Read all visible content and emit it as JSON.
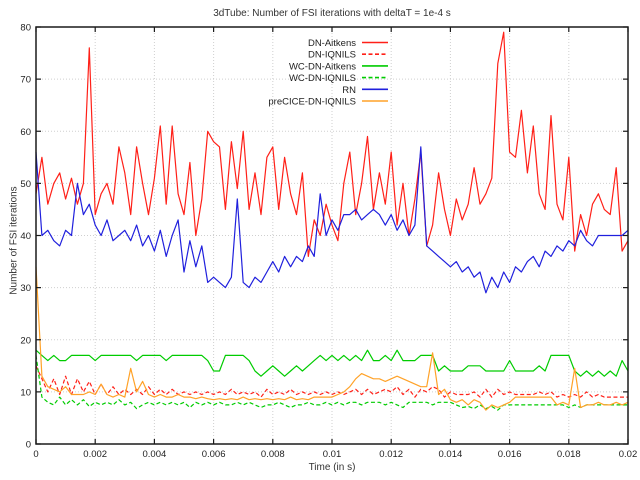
{
  "chart_data": {
    "type": "line",
    "title": "3dTube: Number of FSI iterations with deltaT = 1e-4 s",
    "xlabel": "Time (in s)",
    "ylabel": "Number of FSI iterations",
    "xlim": [
      0,
      0.02
    ],
    "ylim": [
      0,
      80
    ],
    "x_tick_values": [
      0,
      0.002,
      0.004,
      0.006,
      0.008,
      0.01,
      0.012,
      0.014,
      0.016,
      0.018,
      0.02
    ],
    "x_tick_labels": [
      "0",
      "0.002",
      "0.004",
      "0.006",
      "0.008",
      "0.01",
      "0.012",
      "0.014",
      "0.016",
      "0.018",
      "0.02"
    ],
    "y_tick_values": [
      0,
      10,
      20,
      30,
      40,
      50,
      60,
      70,
      80
    ],
    "y_tick_labels": [
      "0",
      "10",
      "20",
      "30",
      "40",
      "50",
      "60",
      "70",
      "80"
    ],
    "grid": true,
    "legend_position": "top-center-inside",
    "x_step": 0.0002,
    "colors": {
      "red": "#ff2018",
      "green": "#00cc00",
      "blue": "#2020dd",
      "orange": "#ffa228",
      "grid": "#cfcfcf",
      "border": "#1a1a1a"
    },
    "series": [
      {
        "name": "DN-Aitkens",
        "color": "#ff2018",
        "dash": "solid",
        "values": [
          48,
          55,
          46,
          50,
          52,
          47,
          51,
          46,
          50,
          76,
          44,
          48,
          50,
          46,
          57,
          52,
          44,
          57,
          50,
          44,
          51,
          61,
          46,
          61,
          48,
          44,
          54,
          40,
          47,
          60,
          58,
          57,
          45,
          58,
          49,
          60,
          45,
          52,
          44,
          55,
          57,
          45,
          55,
          48,
          44,
          52,
          36,
          43,
          40,
          46,
          42,
          39,
          50,
          56,
          44,
          50,
          59,
          45,
          52,
          46,
          56,
          42,
          50,
          40,
          47,
          56,
          38,
          42,
          52,
          45,
          40,
          47,
          43,
          46,
          53,
          46,
          48,
          51,
          73,
          79,
          56,
          55,
          64,
          52,
          61,
          48,
          45,
          63,
          46,
          43,
          55,
          37,
          44,
          40,
          46,
          48,
          45,
          44,
          53,
          37,
          39
        ]
      },
      {
        "name": "DN-IQNILS",
        "color": "#ff2018",
        "dash": "dashed",
        "values": [
          15,
          12.5,
          10,
          12.5,
          9.5,
          13,
          9.5,
          12.5,
          10,
          12,
          9.5,
          11.5,
          9.5,
          11,
          9.5,
          10.5,
          9.5,
          10.5,
          9.5,
          11,
          9.5,
          10.5,
          9.5,
          10.5,
          9.5,
          10,
          9.5,
          10,
          9.5,
          10,
          9.5,
          10,
          9.5,
          10.5,
          9.5,
          10,
          9.5,
          10,
          9,
          10.5,
          9.5,
          10,
          9.5,
          10.5,
          9.5,
          10,
          9.5,
          10,
          9.5,
          10,
          9.5,
          10,
          9.5,
          10,
          10.5,
          9.5,
          10.5,
          9.5,
          10,
          10.5,
          10,
          11,
          9.5,
          10.5,
          9,
          10.5,
          10,
          11,
          10.5,
          9,
          10,
          9.5,
          9.5,
          9.5,
          10,
          9,
          10.5,
          9,
          10.5,
          9.5,
          10,
          9.5,
          9.5,
          9.5,
          9.5,
          10,
          9.5,
          10,
          9,
          9.5,
          9,
          9.5,
          9,
          10,
          9,
          9.5,
          9,
          9,
          9,
          9,
          9
        ]
      },
      {
        "name": "WC-DN-Aitkens",
        "color": "#00cc00",
        "dash": "solid",
        "values": [
          18,
          17,
          16,
          17,
          16,
          16,
          17,
          17,
          17,
          17,
          16,
          17,
          17,
          17,
          17,
          17,
          17,
          16,
          17,
          17,
          17,
          17,
          16,
          17,
          17,
          17,
          17,
          17,
          17,
          16,
          14,
          14,
          17,
          17,
          17,
          17,
          16,
          14,
          13,
          14,
          15,
          14,
          13,
          14,
          15,
          14,
          15,
          16,
          17,
          16,
          17,
          16,
          17,
          16,
          17,
          16,
          18,
          16,
          16,
          17,
          16,
          18,
          16,
          16,
          16,
          17,
          17,
          17,
          14,
          15,
          14,
          14,
          14,
          15,
          15,
          15,
          14,
          14,
          14,
          14,
          16,
          14,
          14,
          14,
          14,
          15,
          14,
          17,
          17,
          17,
          17,
          14,
          13,
          14,
          13,
          14,
          13,
          14,
          13,
          16,
          14
        ]
      },
      {
        "name": "WC-DN-IQNILS",
        "color": "#00cc00",
        "dash": "dashed",
        "values": [
          17,
          9,
          8,
          7.5,
          9,
          7.5,
          8.5,
          7.5,
          8.5,
          7.2,
          8,
          7.5,
          8,
          7.5,
          8.5,
          7.5,
          8,
          6.8,
          7.5,
          8,
          7.5,
          8,
          7.5,
          8,
          7.5,
          8,
          7,
          8,
          7.5,
          8,
          7.5,
          8,
          7.5,
          7.5,
          8,
          7.5,
          8,
          7.5,
          7,
          7.5,
          7.5,
          8,
          7.5,
          7,
          7.5,
          7.5,
          8,
          7.5,
          7.5,
          8,
          7.5,
          8,
          7.5,
          8,
          8,
          7.5,
          8,
          8,
          8,
          7.5,
          8,
          7.5,
          7,
          8,
          8,
          8,
          8,
          7.5,
          8,
          8,
          8,
          7.5,
          7,
          7.2,
          6.8,
          7.5,
          6.8,
          7.2,
          6.5,
          7.5,
          7.5,
          7.5,
          7.5,
          7.5,
          7.5,
          7.5,
          7.5,
          7.5,
          7.5,
          7.5,
          7,
          7.5,
          7,
          7.5,
          7.5,
          7.5,
          7.5,
          7.5,
          7.5,
          7.5,
          7.5
        ]
      },
      {
        "name": "RN",
        "color": "#2020dd",
        "dash": "solid",
        "values": [
          56,
          40,
          41,
          39,
          38,
          41,
          40,
          50,
          44,
          46,
          42,
          40,
          43,
          39,
          40,
          41,
          39,
          42,
          38,
          40,
          37,
          41,
          36,
          40,
          43,
          33,
          39,
          34,
          38,
          31,
          32,
          31,
          30,
          32,
          47,
          31,
          30,
          32,
          31,
          33,
          35,
          33,
          36,
          34,
          36,
          35,
          38,
          36,
          48,
          40,
          43,
          41,
          44,
          44,
          45,
          43,
          44,
          45,
          44,
          42,
          44,
          41,
          43,
          40,
          42,
          57,
          38,
          37,
          36,
          35,
          34,
          35,
          33,
          34,
          32,
          33,
          29,
          32,
          30,
          33,
          31,
          34,
          33,
          35,
          36,
          34,
          37,
          36,
          38,
          37,
          39,
          38,
          41,
          39,
          38,
          40,
          40,
          40,
          40,
          40,
          41
        ]
      },
      {
        "name": "preCICE-DN-IQNILS",
        "color": "#ffa228",
        "dash": "solid",
        "values": [
          34,
          13,
          11,
          10.5,
          10,
          11,
          9.5,
          9.5,
          9.5,
          10,
          9.5,
          11.5,
          9.5,
          9,
          9.5,
          9,
          14.5,
          10,
          12,
          9.5,
          9,
          9.5,
          9,
          9,
          9.5,
          9,
          9,
          8.7,
          9,
          8.7,
          8.5,
          8.7,
          8.5,
          8.7,
          8.5,
          9,
          8.5,
          8.7,
          8.5,
          8.7,
          8.5,
          8.7,
          8.5,
          9,
          8.5,
          8.7,
          8.5,
          9,
          9,
          9,
          9,
          9.5,
          10,
          11,
          12.5,
          13.5,
          13,
          12.5,
          12.5,
          12,
          12.5,
          13,
          12.5,
          12,
          11.5,
          11,
          11,
          17.5,
          9.5,
          10.5,
          8.5,
          8,
          8.5,
          7.5,
          8.5,
          8,
          6.5,
          7.5,
          7,
          7.5,
          8,
          9,
          9,
          9,
          9,
          9,
          9,
          9,
          7.5,
          8,
          7.5,
          14.5,
          7,
          7.5,
          7.5,
          8,
          7.5,
          7.5,
          8,
          7.5,
          8
        ]
      }
    ]
  }
}
